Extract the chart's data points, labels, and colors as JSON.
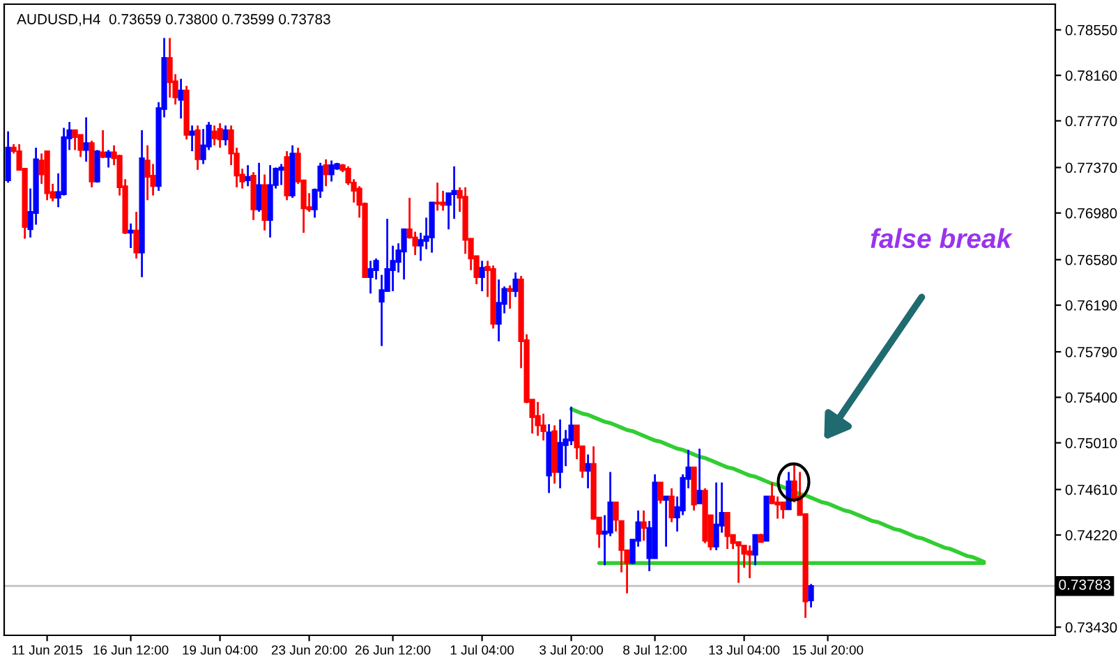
{
  "chart_data": {
    "type": "candlestick",
    "title": "AUDUSD,H4  0.73659 0.73800 0.73599 0.73783",
    "categories": [
      null,
      null,
      null,
      null,
      null,
      null,
      null,
      "11 Jun 2015",
      null,
      null,
      null,
      null,
      null,
      null,
      null,
      null,
      null,
      null,
      null,
      null,
      null,
      null,
      "16 Jun 12:00",
      null,
      null,
      null,
      null,
      null,
      null,
      null,
      null,
      null,
      null,
      null,
      null,
      null,
      null,
      null,
      "19 Jun 04:00",
      null,
      null,
      null,
      null,
      null,
      null,
      null,
      null,
      null,
      null,
      null,
      null,
      null,
      null,
      null,
      "23 Jun 20:00",
      null,
      null,
      null,
      null,
      null,
      null,
      null,
      null,
      null,
      null,
      null,
      null,
      null,
      null,
      "26 Jun 12:00",
      null,
      null,
      null,
      null,
      null,
      null,
      null,
      null,
      null,
      null,
      null,
      null,
      null,
      null,
      null,
      "1 Jul 04:00",
      null,
      null,
      null,
      null,
      null,
      null,
      null,
      null,
      null,
      null,
      null,
      null,
      null,
      null,
      null,
      "3 Jul 20:00",
      null,
      null,
      null,
      null,
      null,
      null,
      null,
      null,
      null,
      null,
      null,
      null,
      null,
      null,
      "8 Jul 12:00",
      null,
      null,
      null,
      null,
      null,
      null,
      null,
      null,
      null,
      null,
      null,
      null,
      null,
      null,
      null,
      "13 Jul 04:00",
      null,
      null,
      null,
      null,
      null,
      null,
      null,
      null,
      null,
      null,
      null,
      null,
      null,
      null,
      "15 Jul 20:00",
      null,
      null,
      null,
      null,
      null,
      null,
      null,
      null,
      null,
      null,
      null,
      null,
      null,
      null,
      null,
      null,
      null,
      null,
      null,
      null,
      null,
      null,
      null,
      null,
      null,
      null,
      null,
      null,
      null,
      null,
      null,
      null,
      null,
      null,
      null,
      null,
      null,
      null,
      null,
      null
    ],
    "ohlc": [
      [
        0.7726,
        0.7768,
        0.7724,
        0.7754
      ],
      [
        0.7754,
        0.7757,
        0.7749,
        0.7751
      ],
      [
        0.7751,
        0.7757,
        0.7735,
        0.7735
      ],
      [
        0.7736,
        0.7736,
        0.7676,
        0.7686
      ],
      [
        0.7684,
        0.7719,
        0.7677,
        0.7699
      ],
      [
        0.7698,
        0.7754,
        0.7688,
        0.7744
      ],
      [
        0.7743,
        0.7749,
        0.7723,
        0.7731
      ],
      [
        0.7751,
        0.7751,
        0.7709,
        0.7715
      ],
      [
        0.7716,
        0.7723,
        0.7708,
        0.7711
      ],
      [
        0.7711,
        0.7732,
        0.7703,
        0.7716
      ],
      [
        0.7714,
        0.7771,
        0.7713,
        0.7763
      ],
      [
        0.7762,
        0.7776,
        0.7752,
        0.7769
      ],
      [
        0.7769,
        0.7769,
        0.7752,
        0.7763
      ],
      [
        0.7765,
        0.7765,
        0.7746,
        0.7752
      ],
      [
        0.7752,
        0.778,
        0.7742,
        0.7758
      ],
      [
        0.7758,
        0.776,
        0.772,
        0.7725
      ],
      [
        0.7725,
        0.7752,
        0.7724,
        0.7751
      ],
      [
        0.775,
        0.7769,
        0.7745,
        0.7746
      ],
      [
        0.7746,
        0.7752,
        0.7737,
        0.775
      ],
      [
        0.775,
        0.7756,
        0.7739,
        0.7745
      ],
      [
        0.7747,
        0.7748,
        0.7713,
        0.772
      ],
      [
        0.7721,
        0.7727,
        0.768,
        0.7681
      ],
      [
        0.7681,
        0.7689,
        0.7668,
        0.7683
      ],
      [
        0.7683,
        0.7699,
        0.7659,
        0.7664
      ],
      [
        0.7664,
        0.7769,
        0.7643,
        0.7745
      ],
      [
        0.7743,
        0.7756,
        0.7709,
        0.7729
      ],
      [
        0.773,
        0.774,
        0.7713,
        0.7721
      ],
      [
        0.7721,
        0.7793,
        0.7717,
        0.7788
      ],
      [
        0.7787,
        0.7848,
        0.778,
        0.7831
      ],
      [
        0.7831,
        0.7848,
        0.7797,
        0.781
      ],
      [
        0.7811,
        0.7817,
        0.7791,
        0.7797
      ],
      [
        0.7795,
        0.7813,
        0.7779,
        0.7803
      ],
      [
        0.7803,
        0.7807,
        0.7761,
        0.7765
      ],
      [
        0.7765,
        0.7773,
        0.7751,
        0.7768
      ],
      [
        0.7769,
        0.7773,
        0.7735,
        0.7744
      ],
      [
        0.7744,
        0.777,
        0.774,
        0.7756
      ],
      [
        0.7755,
        0.7776,
        0.7752,
        0.7773
      ],
      [
        0.7768,
        0.7773,
        0.7756,
        0.7762
      ],
      [
        0.777,
        0.7775,
        0.7754,
        0.7761
      ],
      [
        0.7761,
        0.7773,
        0.7756,
        0.7769
      ],
      [
        0.7769,
        0.7773,
        0.7739,
        0.7749
      ],
      [
        0.7749,
        0.7754,
        0.772,
        0.773
      ],
      [
        0.7731,
        0.7736,
        0.7719,
        0.7725
      ],
      [
        0.7726,
        0.7739,
        0.7721,
        0.7729
      ],
      [
        0.773,
        0.7733,
        0.7692,
        0.7701
      ],
      [
        0.7701,
        0.7741,
        0.7699,
        0.7722
      ],
      [
        0.7722,
        0.7731,
        0.7683,
        0.7692
      ],
      [
        0.7692,
        0.7739,
        0.7677,
        0.7722
      ],
      [
        0.7722,
        0.7737,
        0.7719,
        0.7736
      ],
      [
        0.7735,
        0.774,
        0.7722,
        0.7737
      ],
      [
        0.7746,
        0.7751,
        0.7709,
        0.7713
      ],
      [
        0.7713,
        0.7756,
        0.7711,
        0.7749
      ],
      [
        0.7749,
        0.7754,
        0.7723,
        0.7725
      ],
      [
        0.7726,
        0.7726,
        0.7681,
        0.7702
      ],
      [
        0.7703,
        0.7715,
        0.7699,
        0.7701
      ],
      [
        0.7701,
        0.7719,
        0.7694,
        0.7718
      ],
      [
        0.7717,
        0.7741,
        0.7711,
        0.7738
      ],
      [
        0.7739,
        0.7744,
        0.7721,
        0.7731
      ],
      [
        0.7731,
        0.7743,
        0.7725,
        0.7739
      ],
      [
        0.7736,
        0.7741,
        0.7735,
        0.774
      ],
      [
        0.7739,
        0.774,
        0.7733,
        0.7735
      ],
      [
        0.7736,
        0.7738,
        0.7722,
        0.7724
      ],
      [
        0.7724,
        0.7727,
        0.7707,
        0.7717
      ],
      [
        0.7719,
        0.7721,
        0.7694,
        0.7705
      ],
      [
        0.7706,
        0.7707,
        0.7643,
        0.7643
      ],
      [
        0.7643,
        0.7657,
        0.7629,
        0.765
      ],
      [
        0.7649,
        0.7659,
        0.7641,
        0.7657
      ],
      [
        0.7622,
        0.7645,
        0.7584,
        0.7632
      ],
      [
        0.7631,
        0.7693,
        0.7631,
        0.765
      ],
      [
        0.7649,
        0.767,
        0.7631,
        0.7657
      ],
      [
        0.7656,
        0.7672,
        0.7647,
        0.7666
      ],
      [
        0.7665,
        0.7684,
        0.7641,
        0.7684
      ],
      [
        0.7684,
        0.7711,
        0.7676,
        0.7677
      ],
      [
        0.7677,
        0.7682,
        0.7662,
        0.767
      ],
      [
        0.767,
        0.7681,
        0.7657,
        0.7675
      ],
      [
        0.7674,
        0.7694,
        0.7667,
        0.7678
      ],
      [
        0.7677,
        0.7707,
        0.7664,
        0.7707
      ],
      [
        0.7707,
        0.7724,
        0.77,
        0.7706
      ],
      [
        0.7707,
        0.7717,
        0.77,
        0.7705
      ],
      [
        0.7705,
        0.7715,
        0.7684,
        0.7715
      ],
      [
        0.7714,
        0.7738,
        0.7693,
        0.7717
      ],
      [
        0.7717,
        0.772,
        0.7699,
        0.7711
      ],
      [
        0.7712,
        0.772,
        0.7663,
        0.7675
      ],
      [
        0.7676,
        0.7676,
        0.7649,
        0.7659
      ],
      [
        0.7661,
        0.7661,
        0.7637,
        0.7643
      ],
      [
        0.7643,
        0.7657,
        0.7631,
        0.7651
      ],
      [
        0.7652,
        0.7657,
        0.7626,
        0.7649
      ],
      [
        0.765,
        0.7653,
        0.7599,
        0.7603
      ],
      [
        0.7603,
        0.7641,
        0.7588,
        0.7621
      ],
      [
        0.762,
        0.7635,
        0.7612,
        0.7633
      ],
      [
        0.7633,
        0.7636,
        0.7616,
        0.7631
      ],
      [
        0.7631,
        0.7647,
        0.7626,
        0.7641
      ],
      [
        0.7641,
        0.7644,
        0.7565,
        0.7588
      ],
      [
        0.7589,
        0.7594,
        0.7535,
        0.7536
      ],
      [
        0.7538,
        0.7538,
        0.7509,
        0.7523
      ],
      [
        0.7524,
        0.7536,
        0.7507,
        0.7516
      ],
      [
        0.7516,
        0.7526,
        0.7503,
        0.7511
      ],
      [
        0.7473,
        0.7517,
        0.7458,
        0.751
      ],
      [
        0.7511,
        0.7516,
        0.7466,
        0.7476
      ],
      [
        0.7476,
        0.7521,
        0.7462,
        0.7501
      ],
      [
        0.7499,
        0.7512,
        0.7481,
        0.7504
      ],
      [
        0.7503,
        0.7532,
        0.7499,
        0.7516
      ],
      [
        0.7516,
        0.7516,
        0.7487,
        0.7497
      ],
      [
        0.7498,
        0.7498,
        0.7471,
        0.7477
      ],
      [
        0.7477,
        0.7491,
        0.7462,
        0.7483
      ],
      [
        0.7483,
        0.7498,
        0.7435,
        0.7436
      ],
      [
        0.7437,
        0.7437,
        0.7411,
        0.7423
      ],
      [
        0.7423,
        0.7439,
        0.7396,
        0.7425
      ],
      [
        0.7424,
        0.7476,
        0.7421,
        0.745
      ],
      [
        0.745,
        0.745,
        0.7425,
        0.7435
      ],
      [
        0.7434,
        0.7434,
        0.739,
        0.7409
      ],
      [
        0.7409,
        0.7409,
        0.7372,
        0.7398
      ],
      [
        0.7398,
        0.7418,
        0.7397,
        0.7418
      ],
      [
        0.7417,
        0.7443,
        0.7412,
        0.7433
      ],
      [
        0.7433,
        0.7443,
        0.7417,
        0.7428
      ],
      [
        0.7402,
        0.7434,
        0.7391,
        0.7428
      ],
      [
        0.7402,
        0.7474,
        0.7402,
        0.7467
      ],
      [
        0.7467,
        0.7467,
        0.7449,
        0.7452
      ],
      [
        0.7452,
        0.7455,
        0.7412,
        0.7455
      ],
      [
        0.7455,
        0.7462,
        0.7433,
        0.7437
      ],
      [
        0.7437,
        0.7455,
        0.7425,
        0.7446
      ],
      [
        0.7443,
        0.7474,
        0.7439,
        0.7471
      ],
      [
        0.747,
        0.7495,
        0.7462,
        0.748
      ],
      [
        0.748,
        0.748,
        0.7443,
        0.7448
      ],
      [
        0.7449,
        0.7496,
        0.7449,
        0.746
      ],
      [
        0.746,
        0.7462,
        0.7415,
        0.7417
      ],
      [
        0.7439,
        0.7439,
        0.7409,
        0.7412
      ],
      [
        0.7412,
        0.7467,
        0.7409,
        0.7431
      ],
      [
        0.743,
        0.7467,
        0.7424,
        0.7441
      ],
      [
        0.7441,
        0.7441,
        0.741,
        0.7421
      ],
      [
        0.7422,
        0.7422,
        0.741,
        0.7415
      ],
      [
        0.7416,
        0.7416,
        0.7381,
        0.7413
      ],
      [
        0.7413,
        0.7413,
        0.7394,
        0.7406
      ],
      [
        0.7408,
        0.7413,
        0.7385,
        0.7405
      ],
      [
        0.7405,
        0.7422,
        0.7396,
        0.7422
      ],
      [
        0.7422,
        0.7423,
        0.7416,
        0.7416
      ],
      [
        0.7417,
        0.7455,
        0.7417,
        0.7455
      ],
      [
        0.7455,
        0.7467,
        0.7449,
        0.7449
      ],
      [
        0.745,
        0.7455,
        0.7436,
        0.7448
      ],
      [
        0.745,
        0.745,
        0.7436,
        0.7444
      ],
      [
        0.7444,
        0.7476,
        0.7444,
        0.7468
      ],
      [
        0.7468,
        0.7483,
        0.745,
        0.7452
      ],
      [
        0.7455,
        0.7476,
        0.7439,
        0.7439
      ],
      [
        0.744,
        0.744,
        0.7351,
        0.7365
      ],
      [
        0.73659,
        0.738,
        0.73599,
        0.73783
      ],
      null,
      null,
      null,
      null,
      null,
      null,
      null,
      null,
      null,
      null,
      null,
      null,
      null,
      null,
      null,
      null,
      null,
      null,
      null,
      null,
      null,
      null,
      null,
      null,
      null,
      null,
      null,
      null,
      null,
      null,
      null,
      null,
      null,
      null,
      null,
      null,
      null,
      null,
      null,
      null,
      null,
      null,
      null
    ],
    "colors": [
      "#0000ff",
      "#ff0000",
      "#ff0000",
      "#ff0000",
      "#0000ff",
      "#0000ff",
      "#ff0000",
      "#ff0000",
      "#ff0000",
      "#0000ff",
      "#0000ff",
      "#0000ff",
      "#ff0000",
      "#ff0000",
      "#0000ff",
      "#ff0000",
      "#0000ff",
      "#ff0000",
      "#0000ff",
      "#ff0000",
      "#ff0000",
      "#ff0000",
      "#0000ff",
      "#ff0000",
      "#0000ff",
      "#ff0000",
      "#ff0000",
      "#0000ff",
      "#0000ff",
      "#ff0000",
      "#ff0000",
      "#0000ff",
      "#ff0000",
      "#0000ff",
      "#ff0000",
      "#0000ff",
      "#0000ff",
      "#ff0000",
      "#ff0000",
      "#0000ff",
      "#ff0000",
      "#ff0000",
      "#ff0000",
      "#0000ff",
      "#ff0000",
      "#0000ff",
      "#ff0000",
      "#0000ff",
      "#0000ff",
      "#0000ff",
      "#ff0000",
      "#0000ff",
      "#ff0000",
      "#ff0000",
      "#ff0000",
      "#0000ff",
      "#0000ff",
      "#ff0000",
      "#0000ff",
      "#0000ff",
      "#ff0000",
      "#ff0000",
      "#ff0000",
      "#ff0000",
      "#ff0000",
      "#0000ff",
      "#0000ff",
      "#0000ff",
      "#0000ff",
      "#0000ff",
      "#0000ff",
      "#0000ff",
      "#ff0000",
      "#ff0000",
      "#0000ff",
      "#0000ff",
      "#0000ff",
      "#ff0000",
      "#ff0000",
      "#0000ff",
      "#0000ff",
      "#ff0000",
      "#ff0000",
      "#ff0000",
      "#ff0000",
      "#0000ff",
      "#ff0000",
      "#ff0000",
      "#0000ff",
      "#0000ff",
      "#ff0000",
      "#0000ff",
      "#ff0000",
      "#ff0000",
      "#ff0000",
      "#ff0000",
      "#ff0000",
      "#0000ff",
      "#ff0000",
      "#0000ff",
      "#0000ff",
      "#0000ff",
      "#ff0000",
      "#ff0000",
      "#0000ff",
      "#ff0000",
      "#ff0000",
      "#0000ff",
      "#0000ff",
      "#ff0000",
      "#ff0000",
      "#ff0000",
      "#0000ff",
      "#0000ff",
      "#ff0000",
      "#0000ff",
      "#0000ff",
      "#ff0000",
      "#0000ff",
      "#ff0000",
      "#0000ff",
      "#0000ff",
      "#0000ff",
      "#ff0000",
      "#0000ff",
      "#ff0000",
      "#ff0000",
      "#0000ff",
      "#0000ff",
      "#ff0000",
      "#ff0000",
      "#ff0000",
      "#ff0000",
      "#ff0000",
      "#0000ff",
      "#ff0000",
      "#0000ff",
      "#ff0000",
      "#ff0000",
      "#ff0000",
      "#0000ff",
      "#ff0000",
      "#ff0000",
      "#ff0000",
      "#0000ff",
      null,
      null,
      null,
      null,
      null,
      null,
      null,
      null,
      null,
      null,
      null,
      null,
      null,
      null,
      null,
      null,
      null,
      null,
      null,
      null,
      null,
      null,
      null,
      null,
      null,
      null,
      null,
      null,
      null,
      null,
      null,
      null,
      null,
      null,
      null,
      null,
      null,
      null,
      null,
      null,
      null,
      null,
      null
    ],
    "series": [
      {
        "type": "line",
        "color": "#32cd32",
        "values": [
          null,
          null,
          null,
          null,
          null,
          null,
          null,
          null,
          null,
          null,
          null,
          null,
          null,
          null,
          null,
          null,
          null,
          null,
          null,
          null,
          null,
          null,
          null,
          null,
          null,
          null,
          null,
          null,
          null,
          null,
          null,
          null,
          null,
          null,
          null,
          null,
          null,
          null,
          null,
          null,
          null,
          null,
          null,
          null,
          null,
          null,
          null,
          null,
          null,
          null,
          null,
          null,
          null,
          null,
          null,
          null,
          null,
          null,
          null,
          null,
          null,
          null,
          null,
          null,
          null,
          null,
          null,
          null,
          null,
          null,
          null,
          null,
          null,
          null,
          null,
          null,
          null,
          null,
          null,
          null,
          null,
          null,
          null,
          null,
          null,
          null,
          null,
          null,
          null,
          null,
          null,
          null,
          null,
          null,
          null,
          null,
          null,
          null,
          null,
          null,
          null,
          0.753,
          0.7528,
          0.7526,
          0.7525,
          0.7523,
          0.7521,
          0.7519,
          0.7518,
          0.7516,
          0.7514,
          0.7512,
          0.7511,
          0.7509,
          0.7507,
          0.7505,
          0.7503,
          0.7502,
          0.75,
          0.7498,
          0.7496,
          0.7495,
          0.7493,
          0.7491,
          0.7489,
          0.7488,
          0.7486,
          0.7484,
          0.7482,
          0.748,
          0.7479,
          0.7477,
          0.7475,
          0.7473,
          0.7472,
          0.747,
          0.7468,
          0.7466,
          0.7465,
          0.7463,
          0.7461,
          0.7459,
          0.7457,
          0.7456,
          0.7454,
          0.7452,
          0.745,
          0.7449,
          0.7447,
          0.7445,
          0.7443,
          0.7442,
          0.744,
          0.7438,
          0.7436,
          0.7434,
          0.7433,
          0.7431,
          0.7429,
          0.7427,
          0.7426,
          0.7424,
          0.7422,
          0.742,
          0.7419,
          0.7417,
          0.7415,
          0.7413,
          0.7411,
          0.741,
          0.7408,
          0.7406,
          0.7404,
          0.7403,
          0.7401,
          0.7399,
          null,
          null,
          null,
          null,
          null,
          null,
          null,
          null,
          null,
          null,
          null,
          null
        ]
      },
      {
        "type": "line",
        "color": "#32cd32",
        "values": [
          null,
          null,
          null,
          null,
          null,
          null,
          null,
          null,
          null,
          null,
          null,
          null,
          null,
          null,
          null,
          null,
          null,
          null,
          null,
          null,
          null,
          null,
          null,
          null,
          null,
          null,
          null,
          null,
          null,
          null,
          null,
          null,
          null,
          null,
          null,
          null,
          null,
          null,
          null,
          null,
          null,
          null,
          null,
          null,
          null,
          null,
          null,
          null,
          null,
          null,
          null,
          null,
          null,
          null,
          null,
          null,
          null,
          null,
          null,
          null,
          null,
          null,
          null,
          null,
          null,
          null,
          null,
          null,
          null,
          null,
          null,
          null,
          null,
          null,
          null,
          null,
          null,
          null,
          null,
          null,
          null,
          null,
          null,
          null,
          null,
          null,
          null,
          null,
          null,
          null,
          null,
          null,
          null,
          null,
          null,
          null,
          null,
          null,
          null,
          null,
          null,
          null,
          null,
          null,
          null,
          null,
          0.7398,
          0.7398,
          0.7398,
          0.7398,
          0.7398,
          0.7398,
          0.7398,
          0.7398,
          0.7398,
          0.7398,
          0.7398,
          0.7398,
          0.7398,
          0.7398,
          0.7398,
          0.7398,
          0.7398,
          0.7398,
          0.7398,
          0.7398,
          0.7398,
          0.7398,
          0.7398,
          0.7398,
          0.7398,
          0.7398,
          0.7398,
          0.7398,
          0.7398,
          0.7398,
          0.7398,
          0.7398,
          0.7398,
          0.7398,
          0.7398,
          0.7398,
          0.7398,
          0.7398,
          0.7398,
          0.7398,
          0.7398,
          0.7398,
          0.7398,
          0.7398,
          0.7398,
          0.7398,
          0.7398,
          0.7398,
          0.7398,
          0.7398,
          0.7398,
          0.7398,
          0.7398,
          0.7398,
          0.7398,
          0.7398,
          0.7398,
          0.7398,
          0.7398,
          0.7398,
          0.7398,
          0.7398,
          0.7398,
          0.7398,
          0.7398,
          0.7398,
          0.7398,
          0.7398,
          0.7398,
          0.7398,
          null,
          null,
          null,
          null,
          null,
          null,
          null,
          null,
          null,
          null,
          null,
          null
        ]
      }
    ],
    "ylim": [
      0.7336,
      0.7877
    ],
    "yticks": [
      {
        "value": 0.7855,
        "label": "0.78550"
      },
      {
        "value": 0.7816,
        "label": "0.78160"
      },
      {
        "value": 0.7777,
        "label": "0.77770"
      },
      {
        "value": 0.7737,
        "label": "0.77370"
      },
      {
        "value": 0.7698,
        "label": "0.76980"
      },
      {
        "value": 0.7658,
        "label": "0.76580"
      },
      {
        "value": 0.7619,
        "label": "0.76190"
      },
      {
        "value": 0.7579,
        "label": "0.75790"
      },
      {
        "value": 0.754,
        "label": "0.75400"
      },
      {
        "value": 0.7501,
        "label": "0.75010"
      },
      {
        "value": 0.7461,
        "label": "0.74610"
      },
      {
        "value": 0.7422,
        "label": "0.74220"
      },
      {
        "value": 0.7343,
        "label": "0.73430"
      }
    ],
    "ref_lines": [
      {
        "axis": "y",
        "value": 0.73783,
        "label": "0.73783",
        "color": "#c0c0c0"
      }
    ],
    "annotations": [
      "false break"
    ]
  }
}
